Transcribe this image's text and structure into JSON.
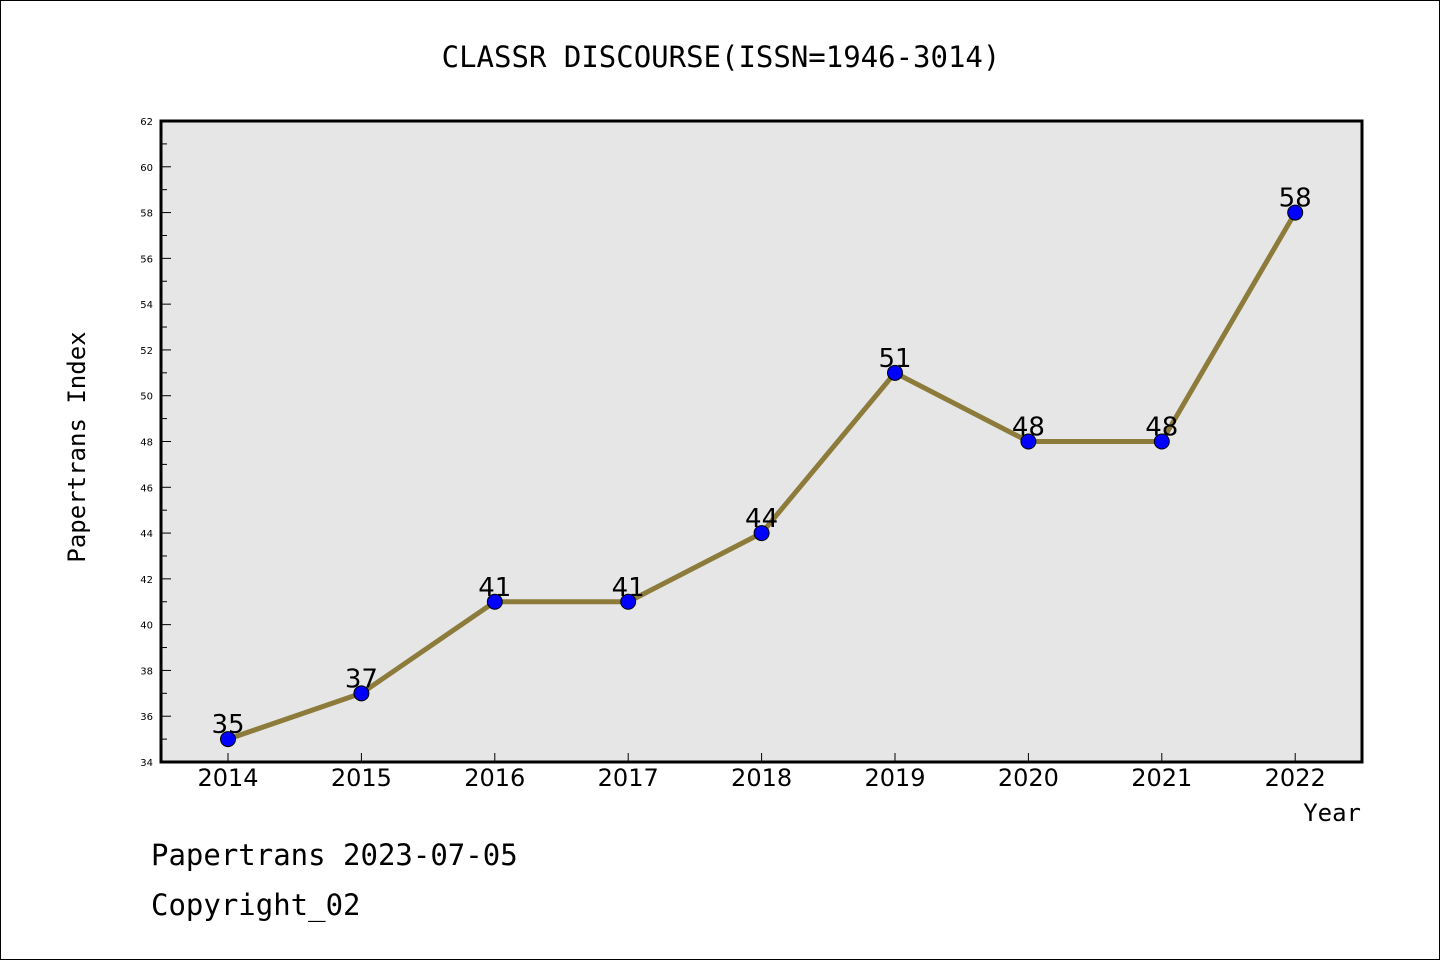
{
  "chart_data": {
    "type": "line",
    "title": "CLASSR DISCOURSE(ISSN=1946-3014)",
    "xlabel": "Year",
    "ylabel": "Papertrans Index",
    "categories": [
      "2014",
      "2015",
      "2016",
      "2017",
      "2018",
      "2019",
      "2020",
      "2021",
      "2022"
    ],
    "series": [
      {
        "values": [
          35,
          37,
          41,
          41,
          44,
          51,
          48,
          48,
          58
        ]
      }
    ],
    "data_labels": [
      "35",
      "37",
      "41",
      "41",
      "44",
      "51",
      "48",
      "48",
      "58"
    ],
    "ylim": [
      34,
      62
    ],
    "y_ticks": [
      "34",
      "36",
      "38",
      "40",
      "42",
      "44",
      "46",
      "48",
      "50",
      "52",
      "54",
      "56",
      "58",
      "60",
      "62"
    ],
    "grid": false,
    "legend": "none",
    "colors": {
      "plot_background": "#e6e6e6",
      "line": "#8c7b3a",
      "marker": "#0000ff",
      "axes": "#000000"
    }
  },
  "footer": {
    "line1": "Papertrans 2023-07-05",
    "line2": "Copyright_02"
  }
}
